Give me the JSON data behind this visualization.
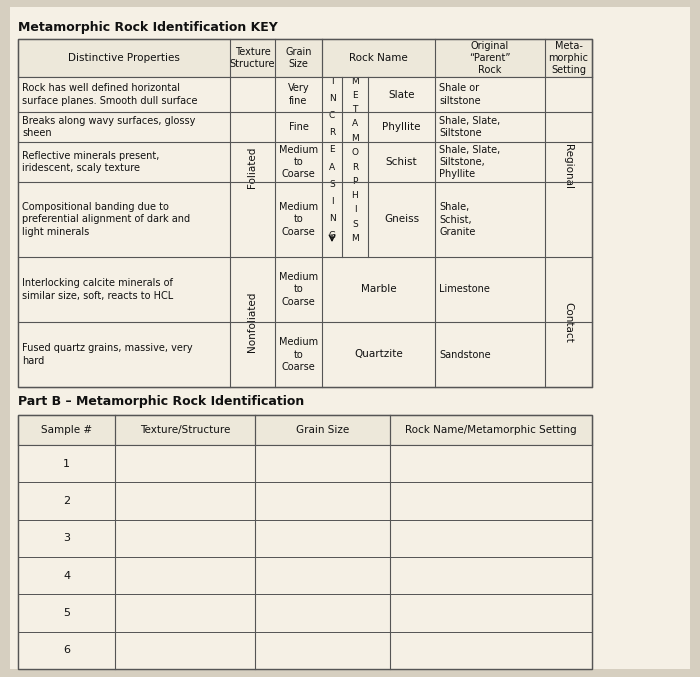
{
  "title": "Metamorphic Rock Identification KEY",
  "part_b_title": "Part B – Metamorphic Rock Identification",
  "bg_color": "#d6cfc0",
  "paper_color": "#f0ece0",
  "line_color": "#555555",
  "text_color": "#111111",
  "row_data": [
    {
      "distinctive": "Rock has well defined horizontal\nsurface planes. Smooth dull surface",
      "grain": "Very\nfine",
      "rock_name": "Slate",
      "parent": "Shale or\nsiltstone"
    },
    {
      "distinctive": "Breaks along wavy surfaces, glossy\nsheen",
      "grain": "Fine",
      "rock_name": "Phyllite",
      "parent": "Shale, Slate,\nSiltstone"
    },
    {
      "distinctive": "Reflective minerals present,\niridescent, scaly texture",
      "grain": "Medium\nto\nCoarse",
      "rock_name": "Schist",
      "parent": "Shale, Slate,\nSiltstone,\nPhyllite"
    },
    {
      "distinctive": "Compositional banding due to\npreferential alignment of dark and\nlight minerals",
      "grain": "Medium\nto\nCoarse",
      "rock_name": "Gneiss",
      "parent": "Shale,\nSchist,\nGranite"
    },
    {
      "distinctive": "Interlocking calcite minerals of\nsimilar size, soft, reacts to HCL",
      "grain": "Medium\nto\nCoarse",
      "rock_name": "Marble",
      "parent": "Limestone"
    },
    {
      "distinctive": "Fused quartz grains, massive, very\nhard",
      "grain": "Medium\nto\nCoarse",
      "rock_name": "Quartzite",
      "parent": "Sandstone"
    }
  ],
  "part_b_samples": [
    "1",
    "2",
    "3",
    "4",
    "5",
    "6"
  ]
}
